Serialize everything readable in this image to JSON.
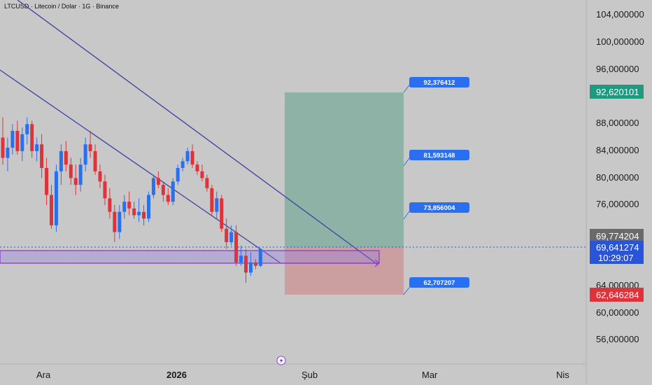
{
  "header": {
    "title": "LTCUSD · Litecoin / Dolar · 1G · Binance"
  },
  "chart_data": {
    "type": "candlestick",
    "symbol": "LTCUSD",
    "y_ticks": [
      "104,000000",
      "100,000000",
      "96,000000",
      "88,000000",
      "84,000000",
      "80,000000",
      "76,000000",
      "64,000000",
      "60,000000",
      "56,000000"
    ],
    "x_ticks": [
      "Ara",
      "2026",
      "Şub",
      "Mar",
      "Nis"
    ],
    "badges": {
      "target_top": "92,620101",
      "level_high": "69,774204",
      "current_price": "69,641274",
      "countdown": "10:29:07",
      "stop": "62,646284"
    },
    "position_labels": [
      "92,376412",
      "81,593148",
      "73,856004",
      "62,707207"
    ],
    "candles": [
      {
        "o": 86.0,
        "h": 89.0,
        "l": 82.0,
        "c": 83.0
      },
      {
        "o": 83.0,
        "h": 86.0,
        "l": 81.0,
        "c": 84.5
      },
      {
        "o": 84.5,
        "h": 88.0,
        "l": 83.5,
        "c": 87.0
      },
      {
        "o": 87.0,
        "h": 88.5,
        "l": 83.5,
        "c": 84.0
      },
      {
        "o": 84.0,
        "h": 87.5,
        "l": 82.5,
        "c": 86.5
      },
      {
        "o": 86.5,
        "h": 89.0,
        "l": 85.0,
        "c": 88.0
      },
      {
        "o": 88.0,
        "h": 88.5,
        "l": 83.0,
        "c": 84.0
      },
      {
        "o": 84.0,
        "h": 86.0,
        "l": 82.5,
        "c": 85.0
      },
      {
        "o": 85.0,
        "h": 86.5,
        "l": 80.0,
        "c": 81.5
      },
      {
        "o": 81.5,
        "h": 83.0,
        "l": 76.0,
        "c": 77.5
      },
      {
        "o": 77.5,
        "h": 79.0,
        "l": 72.5,
        "c": 73.0
      },
      {
        "o": 73.0,
        "h": 82.0,
        "l": 72.0,
        "c": 81.0
      },
      {
        "o": 81.0,
        "h": 85.0,
        "l": 79.0,
        "c": 84.0
      },
      {
        "o": 84.0,
        "h": 85.5,
        "l": 81.0,
        "c": 82.0
      },
      {
        "o": 82.0,
        "h": 83.0,
        "l": 79.0,
        "c": 80.0
      },
      {
        "o": 80.0,
        "h": 82.0,
        "l": 77.5,
        "c": 79.0
      },
      {
        "o": 79.0,
        "h": 83.0,
        "l": 78.0,
        "c": 82.0
      },
      {
        "o": 82.0,
        "h": 86.0,
        "l": 81.0,
        "c": 85.0
      },
      {
        "o": 85.0,
        "h": 87.0,
        "l": 83.0,
        "c": 84.0
      },
      {
        "o": 84.0,
        "h": 85.0,
        "l": 80.5,
        "c": 81.0
      },
      {
        "o": 81.0,
        "h": 82.0,
        "l": 78.5,
        "c": 79.5
      },
      {
        "o": 79.5,
        "h": 80.5,
        "l": 76.0,
        "c": 77.0
      },
      {
        "o": 77.0,
        "h": 78.5,
        "l": 74.0,
        "c": 75.0
      },
      {
        "o": 75.0,
        "h": 76.0,
        "l": 70.5,
        "c": 72.0
      },
      {
        "o": 72.0,
        "h": 76.0,
        "l": 71.0,
        "c": 75.0
      },
      {
        "o": 75.0,
        "h": 77.5,
        "l": 74.0,
        "c": 76.5
      },
      {
        "o": 76.5,
        "h": 78.0,
        "l": 74.5,
        "c": 75.5
      },
      {
        "o": 75.5,
        "h": 76.5,
        "l": 74.0,
        "c": 74.5
      },
      {
        "o": 74.5,
        "h": 77.0,
        "l": 73.5,
        "c": 75.0
      },
      {
        "o": 75.0,
        "h": 76.0,
        "l": 73.0,
        "c": 74.0
      },
      {
        "o": 74.0,
        "h": 78.0,
        "l": 73.5,
        "c": 77.5
      },
      {
        "o": 77.5,
        "h": 80.5,
        "l": 77.0,
        "c": 80.0
      },
      {
        "o": 80.0,
        "h": 81.0,
        "l": 78.5,
        "c": 79.0
      },
      {
        "o": 79.0,
        "h": 79.5,
        "l": 76.5,
        "c": 77.5
      },
      {
        "o": 77.5,
        "h": 78.5,
        "l": 76.0,
        "c": 76.5
      },
      {
        "o": 76.5,
        "h": 80.0,
        "l": 76.0,
        "c": 79.5
      },
      {
        "o": 79.5,
        "h": 82.0,
        "l": 79.0,
        "c": 81.5
      },
      {
        "o": 81.5,
        "h": 83.0,
        "l": 81.0,
        "c": 82.5
      },
      {
        "o": 82.5,
        "h": 84.5,
        "l": 82.0,
        "c": 84.0
      },
      {
        "o": 84.0,
        "h": 85.0,
        "l": 81.5,
        "c": 82.0
      },
      {
        "o": 82.0,
        "h": 82.5,
        "l": 80.5,
        "c": 81.0
      },
      {
        "o": 81.0,
        "h": 82.0,
        "l": 79.5,
        "c": 80.0
      },
      {
        "o": 80.0,
        "h": 80.5,
        "l": 78.0,
        "c": 78.5
      },
      {
        "o": 78.5,
        "h": 79.0,
        "l": 74.5,
        "c": 75.0
      },
      {
        "o": 75.0,
        "h": 78.0,
        "l": 74.0,
        "c": 77.0
      },
      {
        "o": 77.0,
        "h": 77.5,
        "l": 72.0,
        "c": 72.5
      },
      {
        "o": 72.5,
        "h": 74.0,
        "l": 69.5,
        "c": 70.5
      },
      {
        "o": 70.5,
        "h": 73.0,
        "l": 70.0,
        "c": 72.0
      },
      {
        "o": 72.0,
        "h": 73.0,
        "l": 67.0,
        "c": 67.5
      },
      {
        "o": 67.5,
        "h": 70.0,
        "l": 67.0,
        "c": 68.5
      },
      {
        "o": 68.5,
        "h": 69.5,
        "l": 64.5,
        "c": 66.0
      },
      {
        "o": 66.0,
        "h": 69.0,
        "l": 65.5,
        "c": 67.5
      },
      {
        "o": 67.5,
        "h": 68.0,
        "l": 66.5,
        "c": 67.0
      },
      {
        "o": 67.0,
        "h": 69.6,
        "l": 66.8,
        "c": 69.5
      }
    ]
  }
}
